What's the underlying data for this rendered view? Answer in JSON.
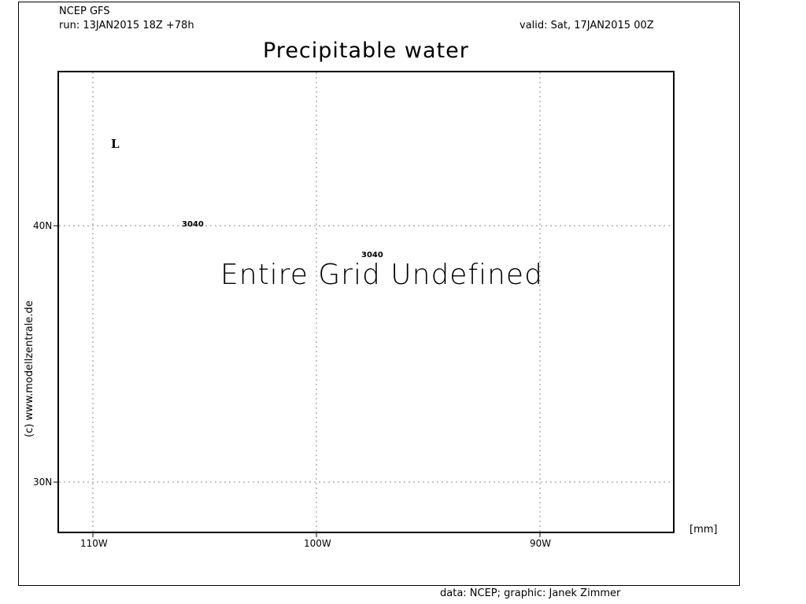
{
  "header": {
    "model": "NCEP GFS",
    "run": "run: 13JAN2015 18Z +78h",
    "valid": "valid: Sat, 17JAN2015 00Z",
    "title": "Precipitable water"
  },
  "map": {
    "message": "Entire Grid Undefined",
    "unit": "[mm]",
    "low_marker": "L",
    "contour_labels": [
      "3040",
      "3040"
    ],
    "lon_ticks": [
      "110W",
      "100W",
      "90W"
    ],
    "lat_ticks": [
      "40N",
      "30N"
    ],
    "grid": "dotted"
  },
  "footer": {
    "copyright": "(c) www.modellzentrale.de",
    "credits": "data: NCEP; graphic: Janek Zimmer"
  }
}
